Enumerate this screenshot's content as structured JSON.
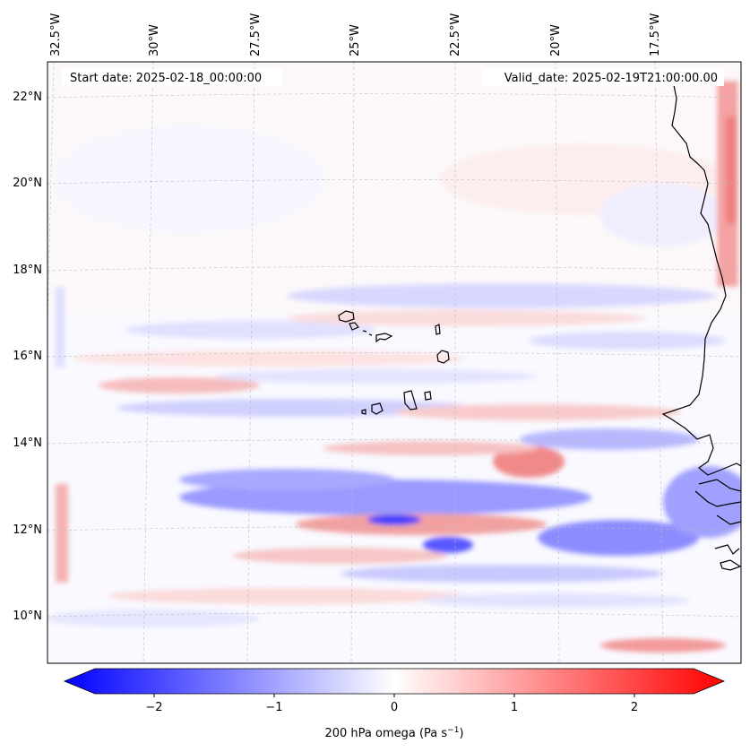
{
  "header": {
    "start_date": "Start date: 2025-02-18_00:00:00",
    "valid_date": "Valid_date: 2025-02-19T21:00:00.00"
  },
  "longitude_labels": [
    "32.5°W",
    "30°W",
    "27.5°W",
    "25°W",
    "22.5°W",
    "20°W",
    "17.5°W"
  ],
  "latitude_labels": [
    "22°N",
    "20°N",
    "18°N",
    "16°N",
    "14°N",
    "12°N",
    "10°N"
  ],
  "colorbar": {
    "ticks": [
      "−2",
      "−1",
      "0",
      "1",
      "2"
    ],
    "label_main": "200 hPa omega (Pa s",
    "label_sup": "−1",
    "label_close": ")",
    "min": -2.7,
    "max": 2.7
  },
  "colors": {
    "negative": "#0000ff",
    "neutral": "#ffffff",
    "positive": "#ff0000",
    "coastline": "#000000",
    "gridline": "#bbbbbb"
  },
  "field": {
    "variable": "omega",
    "level_hPa": 200,
    "units": "Pa s-1"
  }
}
